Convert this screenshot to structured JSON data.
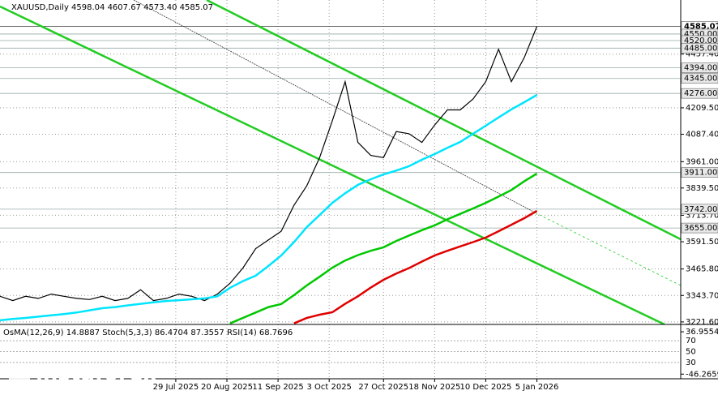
{
  "chart_data": {
    "type": "line",
    "title": "XAUUSD,Daily  4598.04 4607.67 4573.40 4585.07",
    "x": [
      0,
      4,
      8,
      12,
      16,
      20,
      24,
      28,
      32,
      36,
      40,
      44,
      48,
      52,
      56,
      60,
      64,
      68,
      72,
      76,
      80,
      84,
      88,
      92,
      96,
      100,
      104,
      108,
      112,
      116,
      120,
      124,
      128,
      132,
      136,
      140,
      144,
      148,
      152,
      156,
      160,
      164,
      168
    ],
    "xlim": [
      0,
      213
    ],
    "xticks": [
      {
        "value": 55,
        "label": "29 Jul 2025"
      },
      {
        "value": 71,
        "label": "20 Aug 2025"
      },
      {
        "value": 87,
        "label": "11 Sep 2025"
      },
      {
        "value": 103,
        "label": "3 Oct 2025"
      },
      {
        "value": 120,
        "label": "27 Oct 2025"
      },
      {
        "value": 136,
        "label": "18 Nov 2025"
      },
      {
        "value": 152,
        "label": "10 Dec 2025"
      },
      {
        "value": 168,
        "label": "5 Jan 2026"
      }
    ],
    "ylim": [
      3210,
      4707
    ],
    "yticks": [
      {
        "value": 4457.4,
        "label": "4457.40"
      },
      {
        "value": 4209.5,
        "label": "4209.50"
      },
      {
        "value": 4087.4,
        "label": "4087.40"
      },
      {
        "value": 3961,
        "label": "3961.00"
      },
      {
        "value": 3839.5,
        "label": "3839.50"
      },
      {
        "value": 3713.7,
        "label": "3713.70"
      },
      {
        "value": 3591.5,
        "label": "3591.50"
      },
      {
        "value": 3465.8,
        "label": "3465.80"
      },
      {
        "value": 3343.7,
        "label": "3343.70"
      },
      {
        "value": 3221.6,
        "label": "3221.60"
      }
    ],
    "levels": [
      4585.07,
      {
        "value": 4550,
        "label": "4550.00"
      },
      {
        "value": 4520,
        "label": "4520.00"
      },
      {
        "value": 4485,
        "label": "4485.00"
      },
      {
        "value": 4394,
        "label": "4394.00"
      },
      {
        "value": 4345,
        "label": "4345.00"
      },
      {
        "value": 4276,
        "label": "4276.00"
      },
      {
        "value": 3911,
        "label": "3911.00"
      },
      {
        "value": 3742,
        "label": "3742.00"
      },
      {
        "value": 3655,
        "label": "3655.00"
      }
    ],
    "grid": true,
    "series": [
      {
        "name": "XAUUSD",
        "color": "#000000",
        "values": [
          3340,
          3320,
          3340,
          3330,
          3350,
          3340,
          3330,
          3325,
          3340,
          3320,
          3330,
          3370,
          3320,
          3330,
          3350,
          3340,
          3320,
          3350,
          3400,
          3470,
          3560,
          3600,
          3640,
          3760,
          3850,
          3980,
          4150,
          4330,
          4050,
          3990,
          3980,
          4100,
          4090,
          4050,
          4130,
          4200,
          4200,
          4250,
          4330,
          4480,
          4330,
          4440,
          4585
        ]
      },
      {
        "name": "EMA fast",
        "color": "#00e5ff",
        "values": [
          3229,
          3235,
          3240,
          3246,
          3252,
          3258,
          3265,
          3275,
          3285,
          3290,
          3298,
          3305,
          3312,
          3318,
          3322,
          3326,
          3330,
          3340,
          3379,
          3410,
          3435,
          3480,
          3528,
          3590,
          3659,
          3715,
          3771,
          3815,
          3854,
          3880,
          3902,
          3920,
          3940,
          3970,
          3996,
          4025,
          4052,
          4090,
          4127,
          4165,
          4202,
          4235,
          4269
        ]
      },
      {
        "name": "EMA medium",
        "color": "#00c800",
        "values": [
          null,
          null,
          null,
          null,
          null,
          null,
          null,
          null,
          null,
          null,
          null,
          null,
          null,
          null,
          null,
          null,
          null,
          null,
          3215,
          3240,
          3265,
          3290,
          3304,
          3345,
          3390,
          3430,
          3472,
          3505,
          3530,
          3550,
          3566,
          3595,
          3620,
          3645,
          3667,
          3695,
          3720,
          3745,
          3771,
          3800,
          3830,
          3870,
          3906
        ]
      },
      {
        "name": "EMA slow",
        "color": "#e00000",
        "values": [
          null,
          null,
          null,
          null,
          null,
          null,
          null,
          null,
          null,
          null,
          null,
          null,
          null,
          null,
          null,
          null,
          null,
          null,
          null,
          null,
          null,
          null,
          null,
          3215,
          3240,
          3255,
          3266,
          3305,
          3340,
          3380,
          3416,
          3445,
          3470,
          3500,
          3528,
          3550,
          3570,
          3590,
          3611,
          3640,
          3670,
          3700,
          3734
        ]
      }
    ],
    "indicator": {
      "label": "OsMA(12,26,9) 14.8887 Stoch(5,3,3) 86.4704 87.3557 RSI(14) 68.7696",
      "ylim": [
        0,
        100
      ],
      "yticks": [
        70,
        50,
        30
      ],
      "osma_ylim": [
        -55.4,
        51.4
      ],
      "osma_ticks": [
        36.9554,
        -46.2659
      ]
    },
    "watermark": {
      "brand": "instaforex",
      "slogan": "Instant Forex Trading"
    }
  }
}
